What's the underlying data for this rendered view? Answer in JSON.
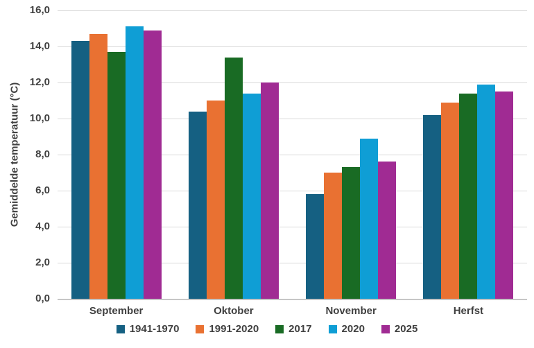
{
  "chart_data": {
    "type": "bar",
    "title": "",
    "ylabel": "Gemiddelde temperatuur (°C)",
    "xlabel": "",
    "categories": [
      "September",
      "Oktober",
      "November",
      "Herfst"
    ],
    "series": [
      {
        "name": "1941-1970",
        "color": "#156082",
        "values": [
          14.3,
          10.4,
          5.8,
          10.2
        ]
      },
      {
        "name": "1991-2020",
        "color": "#E97132",
        "values": [
          14.7,
          11.0,
          7.0,
          10.9
        ]
      },
      {
        "name": "2017",
        "color": "#196B24",
        "values": [
          13.7,
          13.4,
          7.3,
          11.4
        ]
      },
      {
        "name": "2020",
        "color": "#0F9ED5",
        "values": [
          15.1,
          11.4,
          8.9,
          11.9
        ]
      },
      {
        "name": "2025",
        "color": "#A02B93",
        "values": [
          14.9,
          12.0,
          7.6,
          11.5
        ]
      }
    ],
    "ylim": [
      0,
      16
    ],
    "ytick_step": 2,
    "ytick_labels": [
      "0,0",
      "2,0",
      "4,0",
      "6,0",
      "8,0",
      "10,0",
      "12,0",
      "14,0",
      "16,0"
    ],
    "grid": "horizontal",
    "legend_position": "bottom"
  },
  "colors": {
    "background": "#FFFFFF",
    "text": "#404040",
    "gridline": "#D9D9D9",
    "axis_line": "#C6C6C6"
  }
}
